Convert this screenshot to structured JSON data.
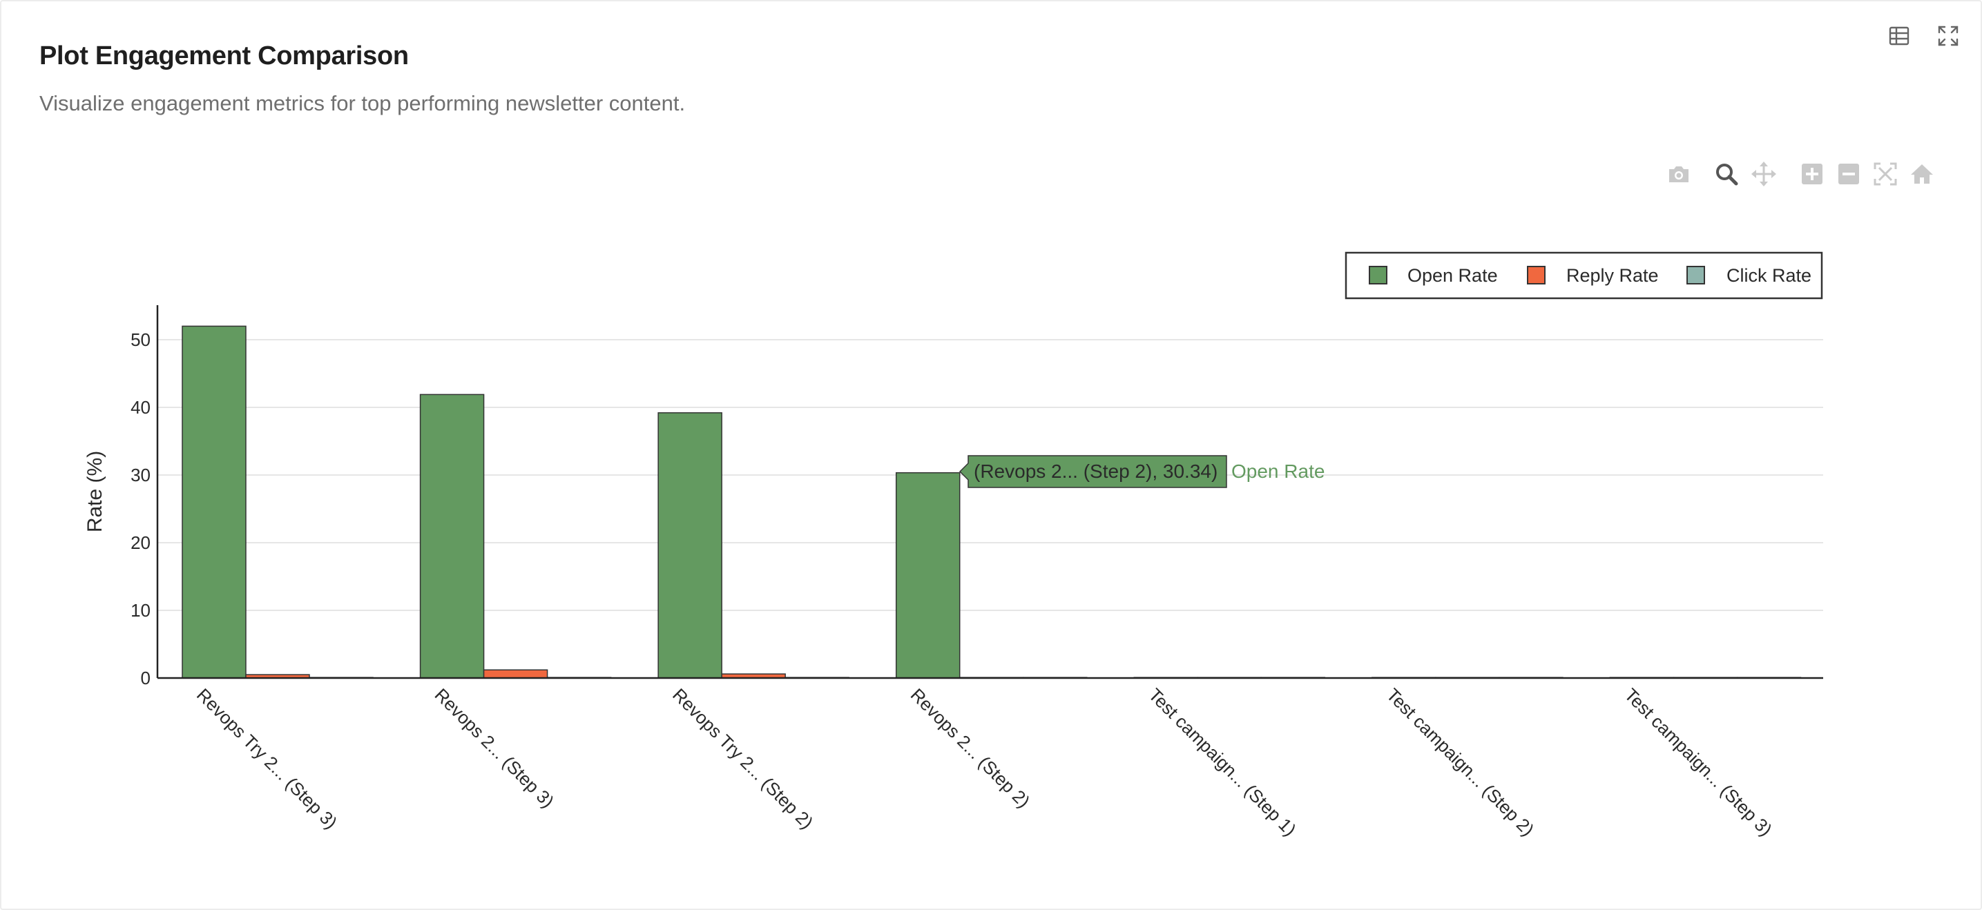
{
  "header": {
    "title": "Plot Engagement Comparison",
    "subtitle": "Visualize engagement metrics for top performing newsletter content."
  },
  "card_tools": [
    {
      "name": "table-view",
      "icon": "table-icon"
    },
    {
      "name": "expand",
      "icon": "expand-icon"
    }
  ],
  "modebar": [
    {
      "name": "download-png",
      "icon": "camera-icon"
    },
    {
      "name": "zoom",
      "icon": "zoom-icon",
      "active": true
    },
    {
      "name": "pan",
      "icon": "pan-icon"
    },
    {
      "name": "zoom-in",
      "icon": "plus-square-icon"
    },
    {
      "name": "zoom-out",
      "icon": "minus-square-icon"
    },
    {
      "name": "autoscale",
      "icon": "autoscale-icon"
    },
    {
      "name": "reset-axes",
      "icon": "home-icon"
    }
  ],
  "tooltip": {
    "text": "(Revops 2... (Step 2), 30.34)",
    "series_label": "Open Rate"
  },
  "chart_data": {
    "type": "bar",
    "categories": [
      "Revops Try 2... (Step 3)",
      "Revops 2... (Step 3)",
      "Revops Try 2... (Step 2)",
      "Revops 2... (Step 2)",
      "Test campaign... (Step 1)",
      "Test campaign... (Step 2)",
      "Test campaign... (Step 3)"
    ],
    "series": [
      {
        "name": "Open Rate",
        "color": "#639a60",
        "values": [
          52.0,
          41.9,
          39.2,
          30.34,
          0,
          0,
          0
        ]
      },
      {
        "name": "Reply Rate",
        "color": "#f0683f",
        "values": [
          0.5,
          1.2,
          0.6,
          0,
          0,
          0,
          0
        ]
      },
      {
        "name": "Click Rate",
        "color": "#8fb5ad",
        "values": [
          0,
          0,
          0,
          0,
          0,
          0,
          0
        ]
      }
    ],
    "xlabel": "",
    "ylabel": "Rate (%)",
    "ylim": [
      0,
      55
    ],
    "yticks": [
      0,
      10,
      20,
      30,
      40,
      50
    ],
    "grid": true,
    "legend_position": "top-right"
  }
}
